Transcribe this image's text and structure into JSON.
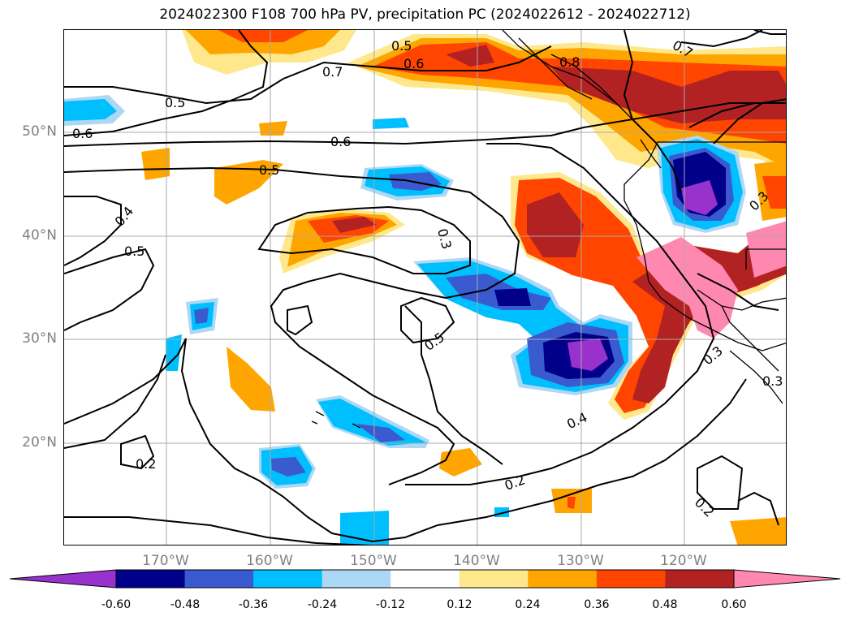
{
  "title": "2024022300 F108 700 hPa PV, precipitation PC (2024022612 - 2024022712)",
  "lat_labels": [
    "50°N",
    "40°N",
    "30°N",
    "20°N"
  ],
  "lon_labels": [
    "170°W",
    "160°W",
    "150°W",
    "140°W",
    "130°W",
    "120°W"
  ],
  "contour_labels": [
    "0.5",
    "0.6",
    "0.8",
    "0.7",
    "0.7",
    "0.5",
    "0.6",
    "0.6",
    "0.5",
    "0.4",
    "0.5",
    "0.3",
    "0.3",
    "0.3",
    "0.5",
    "0.4",
    "0.2",
    "0.2",
    "0.2",
    "0.3"
  ],
  "colorbar": {
    "ticks": [
      "-0.60",
      "-0.48",
      "-0.36",
      "-0.24",
      "-0.12",
      "0.12",
      "0.24",
      "0.36",
      "0.48",
      "0.60"
    ],
    "colors": [
      "#9932cc",
      "#00008b",
      "#3a5bd0",
      "#00bfff",
      "#add8f5",
      "#ffffff",
      "#ffe88c",
      "#ffa500",
      "#ff4500",
      "#b22222",
      "#ff88b0"
    ]
  }
}
